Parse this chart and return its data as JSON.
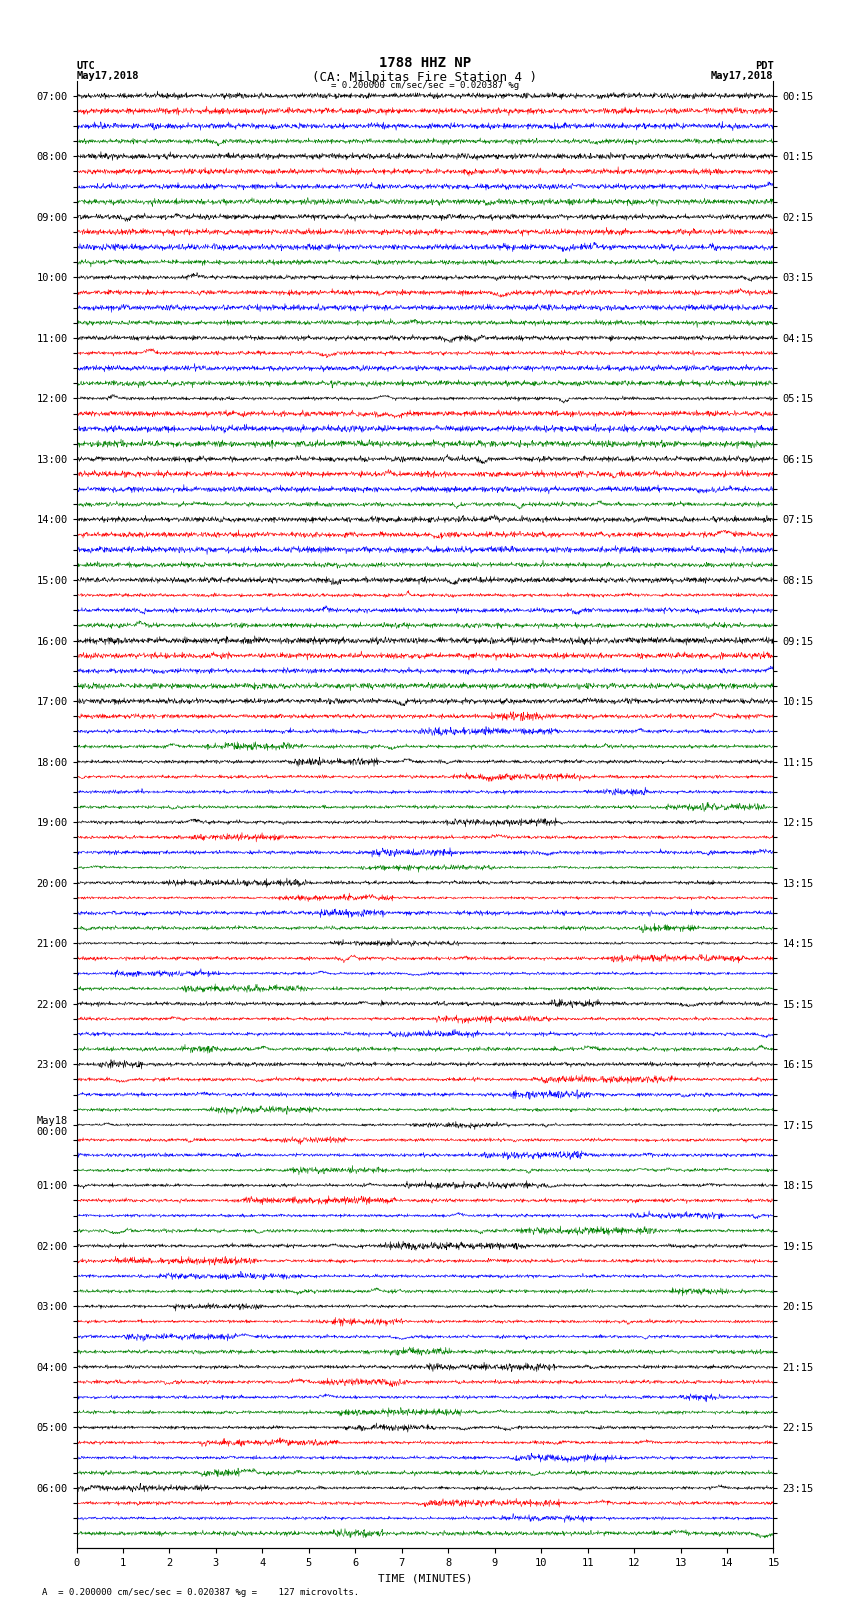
{
  "title_line1": "1788 HHZ NP",
  "title_line2": "(CA: Milpitas Fire Station 4 )",
  "scale_text": "= 0.200000 cm/sec/sec = 0.020387 %g",
  "bottom_text": "= 0.200000 cm/sec/sec = 0.020387 %g =    127 microvolts.",
  "utc_label": "UTC",
  "utc_date": "May17,2018",
  "pdt_label": "PDT",
  "pdt_date": "May17,2018",
  "xlabel": "TIME (MINUTES)",
  "xlim": [
    0,
    15
  ],
  "xticks": [
    0,
    1,
    2,
    3,
    4,
    5,
    6,
    7,
    8,
    9,
    10,
    11,
    12,
    13,
    14,
    15
  ],
  "colors": [
    "black",
    "red",
    "blue",
    "green"
  ],
  "background_color": "white",
  "n_traces": 96,
  "amplitude_scale": 0.35,
  "noise_base": 0.08,
  "left_labels": [
    "07:00",
    "",
    "",
    "",
    "08:00",
    "",
    "",
    "",
    "09:00",
    "",
    "",
    "",
    "10:00",
    "",
    "",
    "",
    "11:00",
    "",
    "",
    "",
    "12:00",
    "",
    "",
    "",
    "13:00",
    "",
    "",
    "",
    "14:00",
    "",
    "",
    "",
    "15:00",
    "",
    "",
    "",
    "16:00",
    "",
    "",
    "",
    "17:00",
    "",
    "",
    "",
    "18:00",
    "",
    "",
    "",
    "19:00",
    "",
    "",
    "",
    "20:00",
    "",
    "",
    "",
    "21:00",
    "",
    "",
    "",
    "22:00",
    "",
    "",
    "",
    "23:00",
    "",
    "",
    "",
    "May18\n00:00",
    "",
    "",
    "",
    "01:00",
    "",
    "",
    "",
    "02:00",
    "",
    "",
    "",
    "03:00",
    "",
    "",
    "",
    "04:00",
    "",
    "",
    "",
    "05:00",
    "",
    "",
    "",
    "06:00",
    "",
    "",
    ""
  ],
  "right_labels": [
    "00:15",
    "",
    "",
    "",
    "01:15",
    "",
    "",
    "",
    "02:15",
    "",
    "",
    "",
    "03:15",
    "",
    "",
    "",
    "04:15",
    "",
    "",
    "",
    "05:15",
    "",
    "",
    "",
    "06:15",
    "",
    "",
    "",
    "07:15",
    "",
    "",
    "",
    "08:15",
    "",
    "",
    "",
    "09:15",
    "",
    "",
    "",
    "10:15",
    "",
    "",
    "",
    "11:15",
    "",
    "",
    "",
    "12:15",
    "",
    "",
    "",
    "13:15",
    "",
    "",
    "",
    "14:15",
    "",
    "",
    "",
    "15:15",
    "",
    "",
    "",
    "16:15",
    "",
    "",
    "",
    "17:15",
    "",
    "",
    "",
    "18:15",
    "",
    "",
    "",
    "19:15",
    "",
    "",
    "",
    "20:15",
    "",
    "",
    "",
    "21:15",
    "",
    "",
    "",
    "22:15",
    "",
    "",
    "",
    "23:15",
    "",
    "",
    ""
  ],
  "title_fontsize": 10,
  "label_fontsize": 8,
  "tick_fontsize": 7.5,
  "figsize": [
    8.5,
    16.13
  ],
  "dpi": 100
}
